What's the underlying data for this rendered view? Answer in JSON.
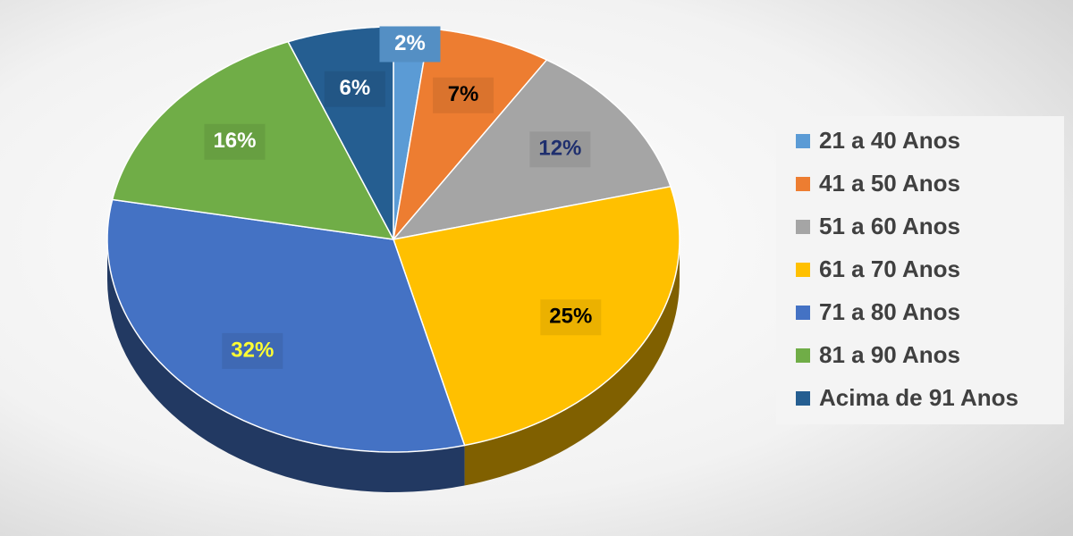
{
  "chart_data": {
    "type": "pie",
    "categories": [
      "21 a 40 Anos",
      "41 a 50 Anos",
      "51 a 60 Anos",
      "61 a 70 Anos",
      "71 a 80 Anos",
      "81 a 90 Anos",
      "Acima de 91 Anos"
    ],
    "values": [
      2,
      7,
      12,
      25,
      32,
      16,
      6
    ],
    "value_labels": [
      "2%",
      "7%",
      "12%",
      "25%",
      "32%",
      "16%",
      "6%"
    ],
    "colors": [
      "#5b9bd5",
      "#ed7d31",
      "#a5a5a5",
      "#ffc000",
      "#4472c4",
      "#70ad47",
      "#255e91"
    ],
    "label_colors": [
      "#ffffff",
      "#000000",
      "#1f2f6e",
      "#000000",
      "#ffff33",
      "#ffffff",
      "#ffffff"
    ],
    "legend": "right"
  }
}
